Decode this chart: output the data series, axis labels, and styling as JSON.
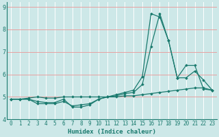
{
  "xlabel": "Humidex (Indice chaleur)",
  "background_color": "#cde8e8",
  "line_color": "#1a7a6e",
  "grid_color_h": "#e8a0a0",
  "grid_color_v": "#ffffff",
  "xlim": [
    -0.5,
    23.5
  ],
  "ylim": [
    4,
    9.2
  ],
  "yticks": [
    4,
    5,
    6,
    7,
    8,
    9
  ],
  "xtick_labels": [
    "0",
    "1",
    "2",
    "3",
    "4",
    "5",
    "6",
    "7",
    "8",
    "9",
    "10",
    "11",
    "12",
    "13",
    "14",
    "15",
    "16",
    "17",
    "18",
    "19",
    "20",
    "21",
    "22",
    "23"
  ],
  "series": [
    [
      4.9,
      4.9,
      4.9,
      4.7,
      4.7,
      4.7,
      4.8,
      4.6,
      4.65,
      4.7,
      4.9,
      5.0,
      5.1,
      5.2,
      5.3,
      5.9,
      8.7,
      8.55,
      7.5,
      5.85,
      6.4,
      6.4,
      5.35,
      5.3
    ],
    [
      4.9,
      4.9,
      4.9,
      4.8,
      4.75,
      4.75,
      4.9,
      4.55,
      4.55,
      4.65,
      4.9,
      5.0,
      5.05,
      5.15,
      5.2,
      5.55,
      7.25,
      8.7,
      7.5,
      5.85,
      5.85,
      6.15,
      5.75,
      5.3
    ],
    [
      4.9,
      4.9,
      4.95,
      5.0,
      4.95,
      4.95,
      5.0,
      5.0,
      5.0,
      5.0,
      5.0,
      5.0,
      5.0,
      5.05,
      5.05,
      5.1,
      5.15,
      5.2,
      5.25,
      5.3,
      5.35,
      5.4,
      5.4,
      5.3
    ]
  ],
  "tick_fontsize": 5.5,
  "xlabel_fontsize": 6.5,
  "marker": "D",
  "markersize": 1.8,
  "linewidth": 0.9
}
